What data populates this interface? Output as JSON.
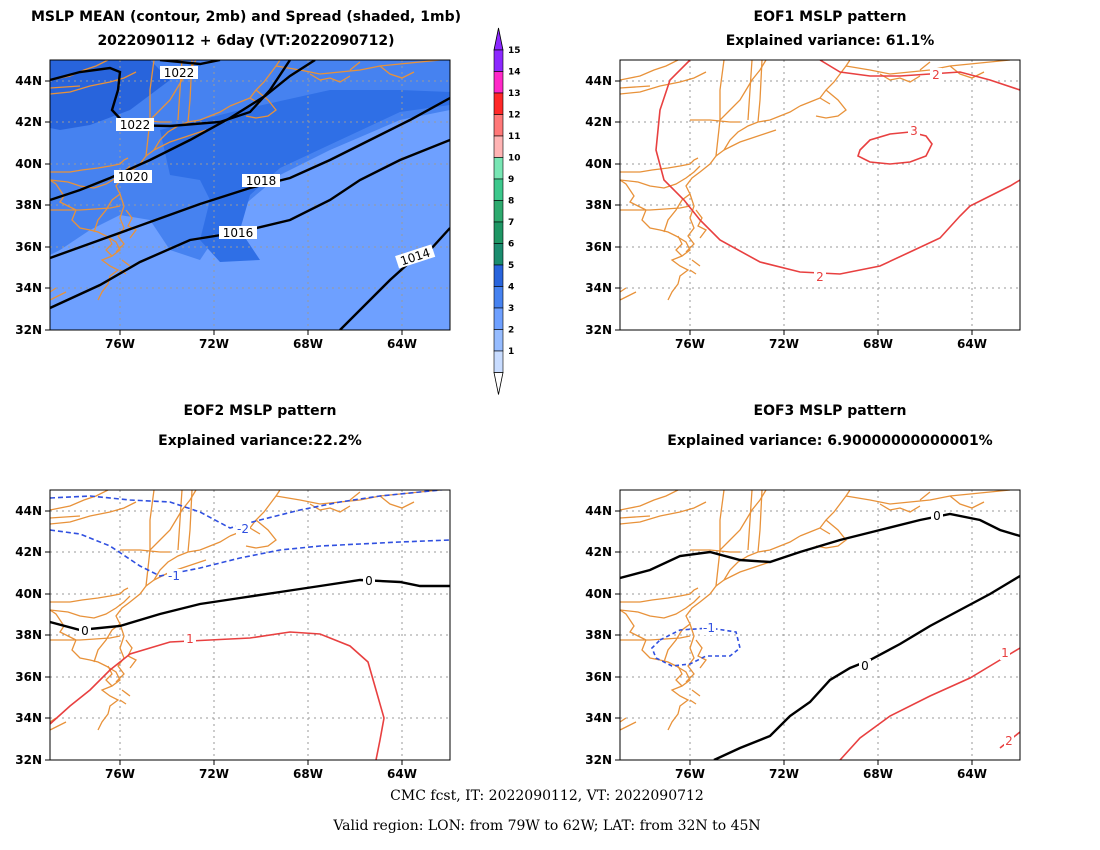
{
  "panel1": {
    "title_line1": "MSLP MEAN (contour, 2mb) and Spread (shaded, 1mb)",
    "title_line2": "2022090112 + 6day (VT:2022090712)",
    "contour_labels": [
      "1022",
      "1022",
      "1020",
      "1018",
      "1016",
      "1014"
    ]
  },
  "colorbar": {
    "labels": [
      "1",
      "2",
      "3",
      "4",
      "5",
      "6",
      "7",
      "8",
      "9",
      "10",
      "11",
      "12",
      "13",
      "14",
      "15"
    ],
    "colors": [
      "#c8dcff",
      "#96bcff",
      "#6ea0ff",
      "#4682f0",
      "#2864dc",
      "#1a8c6e",
      "#1e9664",
      "#2daa6e",
      "#3cc88c",
      "#78e6b4",
      "#ffb4b4",
      "#ff7878",
      "#ff2828",
      "#ff28c8",
      "#8c28ff"
    ]
  },
  "panel2": {
    "title_line1": "EOF1 MSLP pattern",
    "title_line2": "Explained variance: 61.1%",
    "contour_labels": [
      "2",
      "3",
      "2"
    ]
  },
  "panel3": {
    "title_line1": "EOF2 MSLP pattern",
    "title_line2": "Explained variance:22.2%",
    "contour_labels": [
      "-2",
      "-1",
      "0",
      "0",
      "1"
    ]
  },
  "panel4": {
    "title_line1": "EOF3 MSLP pattern",
    "title_line2": "Explained variance: 6.90000000000001%",
    "contour_labels": [
      "0",
      "0",
      "-1",
      "1",
      "2"
    ]
  },
  "axes": {
    "lat_labels": [
      "44N",
      "42N",
      "40N",
      "38N",
      "36N",
      "34N",
      "32N"
    ],
    "lon_labels": [
      "76W",
      "72W",
      "68W",
      "64W"
    ]
  },
  "footer": {
    "line1": "CMC fcst, IT: 2022090112, VT: 2022090712",
    "line2": "Valid region: LON: from 79W to 62W; LAT: from 32N to 45N"
  },
  "colors": {
    "coast": "#e8923a",
    "positive": "#e84040",
    "negative": "#3050e0",
    "zero": "#000000",
    "spread_base": "#6ea0ff",
    "spread_mid": "#4682f0",
    "spread_dark": "#2864dc"
  }
}
